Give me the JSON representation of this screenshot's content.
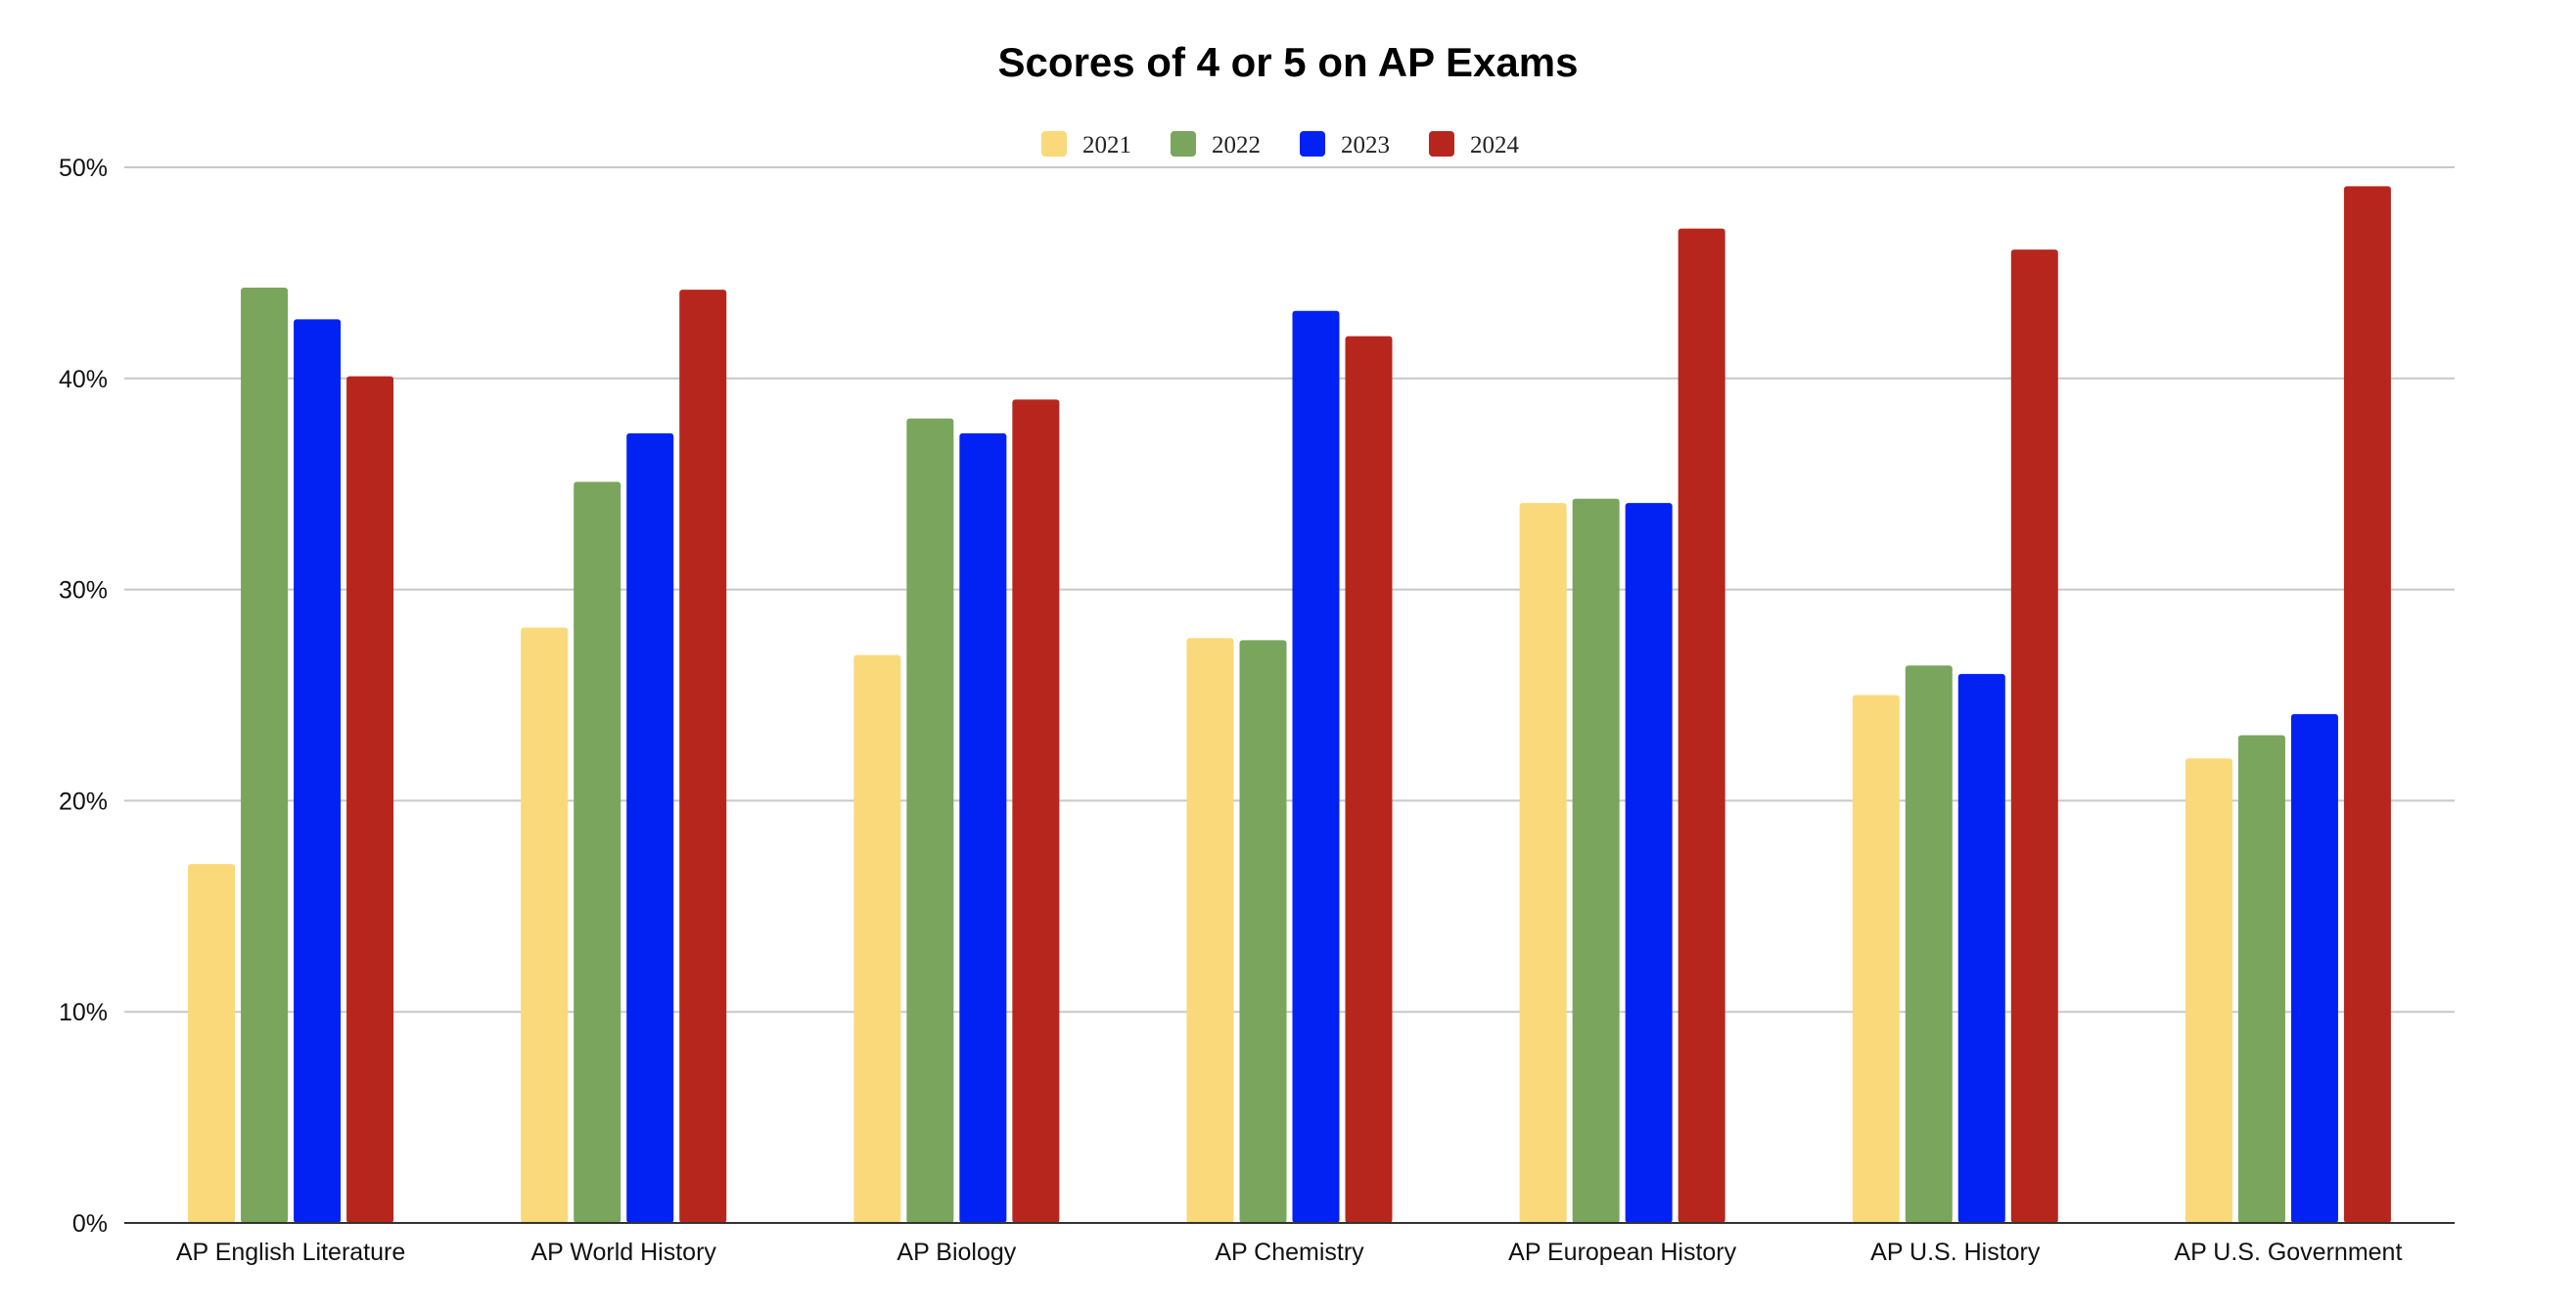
{
  "chart_data": {
    "type": "bar",
    "title": "Scores of 4 or 5 on AP Exams",
    "xlabel": "",
    "ylabel": "",
    "ylim": [
      0,
      50
    ],
    "yticks": [
      "0%",
      "10%",
      "20%",
      "30%",
      "40%",
      "50%"
    ],
    "grid": true,
    "legend_position": "top",
    "categories": [
      "AP English Literature",
      "AP World History",
      "AP Biology",
      "AP Chemistry",
      "AP European History",
      "AP U.S. History",
      "AP U.S. Government"
    ],
    "series": [
      {
        "name": "2021",
        "color": "#f9d97a",
        "values": [
          17,
          28.2,
          26.9,
          27.7,
          34.1,
          25,
          22
        ]
      },
      {
        "name": "2022",
        "color": "#7aa55c",
        "values": [
          44.3,
          35.1,
          38.1,
          27.6,
          34.3,
          26.4,
          23.1
        ]
      },
      {
        "name": "2023",
        "color": "#0222f4",
        "values": [
          42.8,
          37.4,
          37.4,
          43.2,
          34.1,
          26,
          24.1
        ]
      },
      {
        "name": "2024",
        "color": "#b7261d",
        "values": [
          40.1,
          44.2,
          39,
          42,
          47.1,
          46.1,
          49.1
        ]
      }
    ]
  }
}
